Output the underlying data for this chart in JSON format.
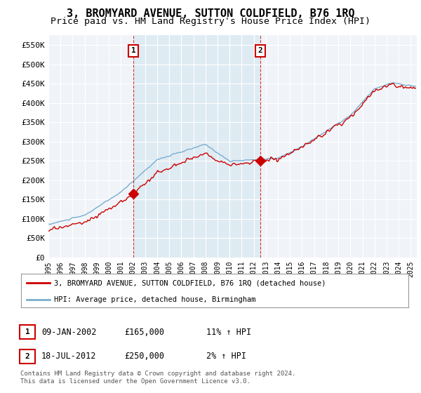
{
  "title": "3, BROMYARD AVENUE, SUTTON COLDFIELD, B76 1RQ",
  "subtitle": "Price paid vs. HM Land Registry's House Price Index (HPI)",
  "ylim": [
    0,
    575000
  ],
  "yticks": [
    0,
    50000,
    100000,
    150000,
    200000,
    250000,
    300000,
    350000,
    400000,
    450000,
    500000,
    550000
  ],
  "ytick_labels": [
    "£0",
    "£50K",
    "£100K",
    "£150K",
    "£200K",
    "£250K",
    "£300K",
    "£350K",
    "£400K",
    "£450K",
    "£500K",
    "£550K"
  ],
  "xtick_years": [
    1995,
    1996,
    1997,
    1998,
    1999,
    2000,
    2001,
    2002,
    2003,
    2004,
    2005,
    2006,
    2007,
    2008,
    2009,
    2010,
    2011,
    2012,
    2013,
    2014,
    2015,
    2016,
    2017,
    2018,
    2019,
    2020,
    2021,
    2022,
    2023,
    2024,
    2025
  ],
  "bg_color": "#f0f4f8",
  "grid_color": "#ffffff",
  "red_color": "#cc0000",
  "blue_color": "#7aadcf",
  "blue_fill_color": "#d0e4f0",
  "sale1_x": 2002.03,
  "sale1_y": 165000,
  "sale2_x": 2012.54,
  "sale2_y": 250000,
  "legend_red": "3, BROMYARD AVENUE, SUTTON COLDFIELD, B76 1RQ (detached house)",
  "legend_blue": "HPI: Average price, detached house, Birmingham",
  "table_rows": [
    {
      "num": "1",
      "date": "09-JAN-2002",
      "price": "£165,000",
      "hpi": "11% ↑ HPI"
    },
    {
      "num": "2",
      "date": "18-JUL-2012",
      "price": "£250,000",
      "hpi": "2% ↑ HPI"
    }
  ],
  "footer": "Contains HM Land Registry data © Crown copyright and database right 2024.\nThis data is licensed under the Open Government Licence v3.0.",
  "title_fontsize": 11,
  "subtitle_fontsize": 9.5
}
